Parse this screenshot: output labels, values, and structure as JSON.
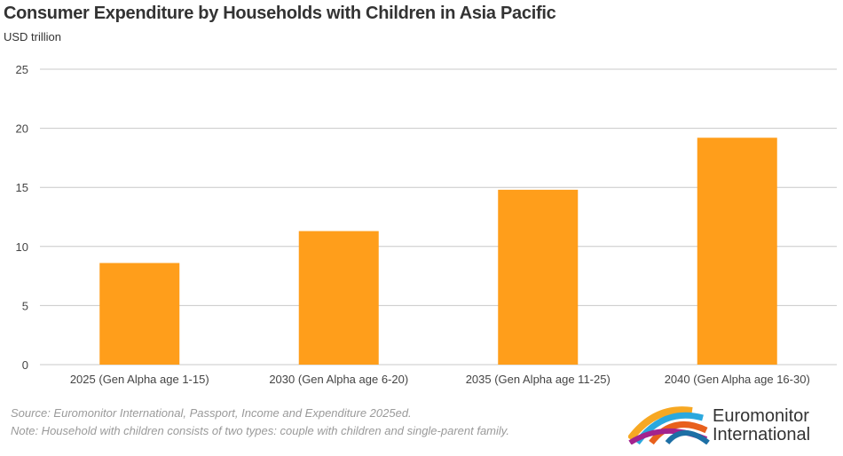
{
  "chart_data": {
    "type": "bar",
    "title": "Consumer Expenditure by Households with Children in Asia Pacific",
    "ylabel": "USD trillion",
    "xlabel": "",
    "categories": [
      "2025 (Gen Alpha age 1-15)",
      "2030 (Gen Alpha age 6-20)",
      "2035 (Gen Alpha age 11-25)",
      "2040 (Gen Alpha age 16-30)"
    ],
    "values": [
      8.6,
      11.3,
      14.8,
      19.2
    ],
    "ylim": [
      0,
      25
    ],
    "yticks": [
      0,
      5,
      10,
      15,
      20,
      25
    ],
    "grid": true,
    "bar_color": "#FF9E1B",
    "grid_color": "#C8C8C8"
  },
  "footer": {
    "source": "Source: Euromonitor International, Passport, Income and Expenditure 2025ed.",
    "note": "Note: Household with children consists of two types: couple with children and single-parent family."
  },
  "logo": {
    "line1": "Euromonitor",
    "line2": "International"
  }
}
